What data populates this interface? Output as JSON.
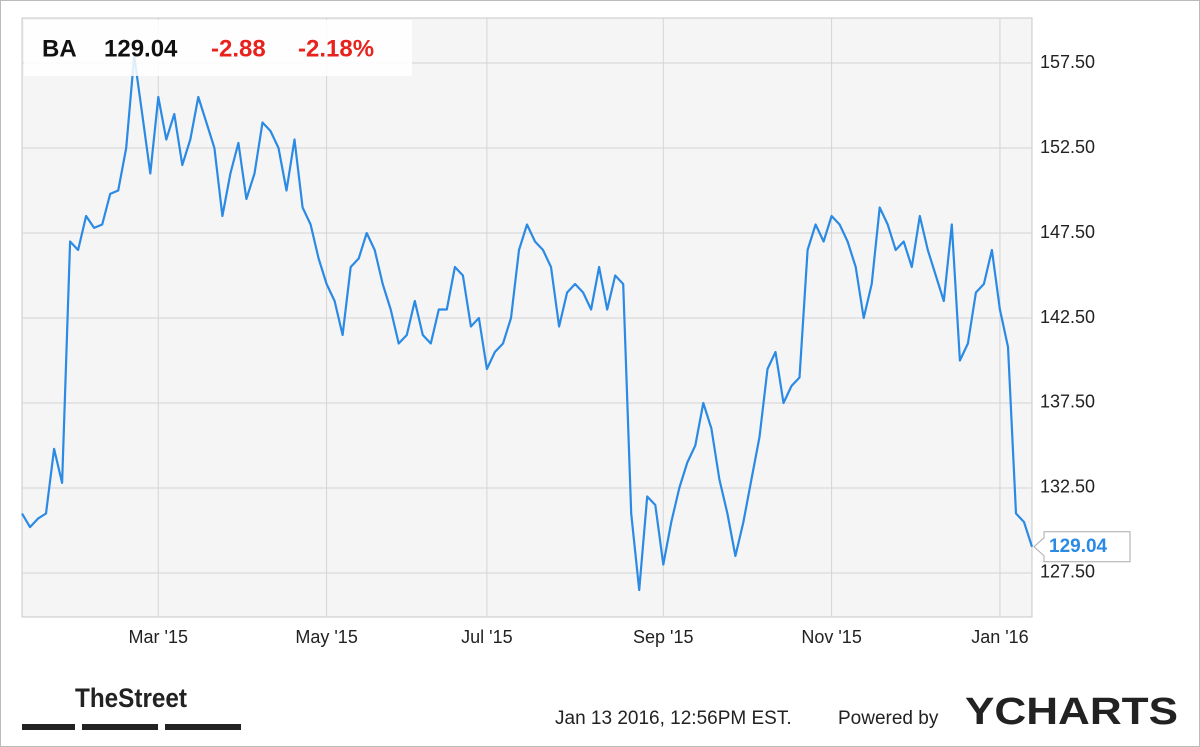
{
  "chart_data": {
    "type": "line",
    "ticker": "BA",
    "price": "129.04",
    "change": "-2.88",
    "change_pct": "-2.18%",
    "timestamp": "Jan 13 2016, 12:56PM EST.",
    "powered_by": "Powered by",
    "brand": "YCHARTS",
    "logo": "TheStreet",
    "categories": [
      null,
      null,
      null,
      null,
      null,
      null,
      null,
      null,
      null,
      null,
      null,
      null,
      null,
      null,
      null,
      null,
      null,
      "Mar '15",
      null,
      null,
      null,
      null,
      null,
      null,
      null,
      null,
      null,
      null,
      null,
      null,
      null,
      null,
      null,
      null,
      null,
      null,
      null,
      null,
      "May '15",
      null,
      null,
      null,
      null,
      null,
      null,
      null,
      null,
      null,
      null,
      null,
      null,
      null,
      null,
      null,
      null,
      null,
      null,
      null,
      "Jul '15",
      null,
      null,
      null,
      null,
      null,
      null,
      null,
      null,
      null,
      null,
      null,
      null,
      null,
      null,
      null,
      null,
      null,
      null,
      null,
      null,
      null,
      "Sep '15",
      null,
      null,
      null,
      null,
      null,
      null,
      null,
      null,
      null,
      null,
      null,
      null,
      null,
      null,
      null,
      null,
      null,
      null,
      null,
      null,
      "Nov '15",
      null,
      null,
      null,
      null,
      null,
      null,
      null,
      null,
      null,
      null,
      null,
      null,
      null,
      null,
      null,
      null,
      null,
      null,
      null,
      null,
      "Jan '16",
      null,
      null,
      null,
      null
    ],
    "series": [
      {
        "name": "BA",
        "color": "#2b8ae4",
        "values": [
          131.0,
          130.2,
          130.7,
          131.0,
          134.8,
          132.8,
          147.0,
          146.5,
          148.5,
          147.8,
          148.0,
          149.8,
          150.0,
          152.5,
          157.9,
          154.5,
          151.0,
          155.5,
          153.0,
          154.5,
          151.5,
          153.0,
          155.5,
          154.0,
          152.5,
          148.5,
          151.0,
          152.8,
          149.5,
          151.0,
          154.0,
          153.5,
          152.5,
          150.0,
          153.0,
          149.0,
          148.0,
          146.0,
          144.5,
          143.5,
          141.5,
          145.5,
          146.0,
          147.5,
          146.5,
          144.5,
          143.0,
          141.0,
          141.5,
          143.5,
          141.5,
          141.0,
          143.0,
          143.0,
          145.5,
          145.0,
          142.0,
          142.5,
          139.5,
          140.5,
          141.0,
          142.5,
          146.5,
          148.0,
          147.0,
          146.5,
          145.5,
          142.0,
          144.0,
          144.5,
          144.0,
          143.0,
          145.5,
          143.0,
          145.0,
          144.5,
          131.0,
          126.5,
          132.0,
          131.5,
          128.0,
          130.5,
          132.5,
          134.0,
          135.0,
          137.5,
          136.0,
          133.0,
          131.0,
          128.5,
          130.5,
          133.0,
          135.5,
          139.5,
          140.5,
          137.5,
          138.5,
          139.0,
          146.5,
          148.0,
          147.0,
          148.5,
          148.0,
          147.0,
          145.5,
          142.5,
          144.5,
          149.0,
          148.0,
          146.5,
          147.0,
          145.5,
          148.5,
          146.5,
          145.0,
          143.5,
          148.0,
          140.0,
          141.0,
          144.0,
          144.5,
          146.5,
          143.0,
          140.8,
          131.0,
          130.5,
          129.04
        ]
      }
    ],
    "ylim": [
      124.91,
      160.15
    ],
    "yticks": [
      {
        "value": 127.5,
        "label": "127.50"
      },
      {
        "value": 132.5,
        "label": "132.50"
      },
      {
        "value": 137.5,
        "label": "137.50"
      },
      {
        "value": 142.5,
        "label": "142.50"
      },
      {
        "value": 147.5,
        "label": "147.50"
      },
      {
        "value": 152.5,
        "label": "152.50"
      },
      {
        "value": 157.5,
        "label": "157.50"
      }
    ],
    "grid": true
  }
}
